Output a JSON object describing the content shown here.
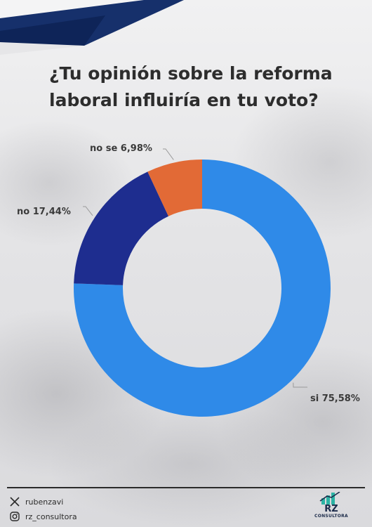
{
  "header": {
    "title": "¿Tu opinión sobre la reforma laboral influiría en tu voto?"
  },
  "chart_data": {
    "type": "pie",
    "variant": "donut",
    "categories": [
      "si",
      "no",
      "no se"
    ],
    "values": [
      75.58,
      17.44,
      6.98
    ],
    "labels": [
      "si 75,58%",
      "no 17,44%",
      "no se 6,98%"
    ],
    "colors": [
      "#2f8ae8",
      "#1e2d8f",
      "#e26a36"
    ],
    "start_angle_deg": 0,
    "direction": "clockwise"
  },
  "footer": {
    "twitter_handle": "rubenzavi",
    "instagram_handle": "rz_consultora",
    "logo_text": "RZ",
    "logo_subtext": "CONSULTORA"
  },
  "icons": {
    "twitter": "x-logo-icon",
    "instagram": "instagram-icon"
  }
}
